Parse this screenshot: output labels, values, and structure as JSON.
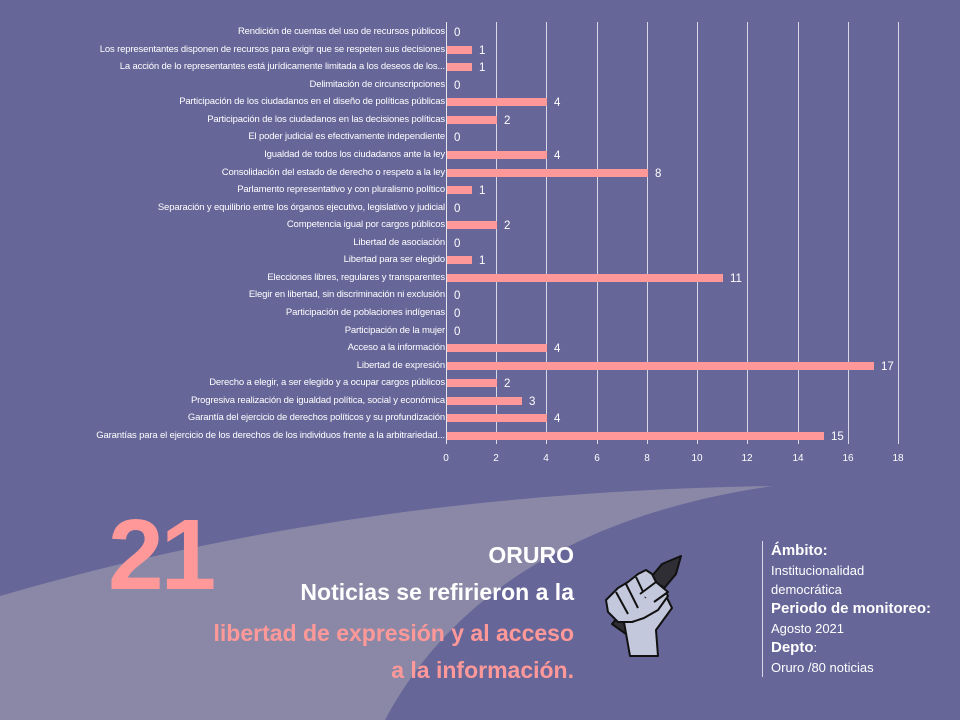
{
  "colors": {
    "background": "#666699",
    "swoosh": "#8a88a6",
    "bar": "#ff9999",
    "accent_text": "#ff9999",
    "text": "#ffffff"
  },
  "chart_data": {
    "type": "bar",
    "orientation": "horizontal",
    "title": "",
    "xlabel": "",
    "ylabel": "",
    "xlim": [
      0,
      18
    ],
    "x_ticks": [
      0,
      2,
      4,
      6,
      8,
      10,
      12,
      14,
      16,
      18
    ],
    "grid": "vertical",
    "legend": null,
    "categories": [
      "Rendición de cuentas del uso de recursos públicos",
      "Los representantes disponen de recursos para exigir que se respeten sus decisiones",
      "La acción de lo representantes está jurídicamente limitada a los deseos de los...",
      "Delimitación de circunscripciones",
      "Participación de los ciudadanos en el diseño de políticas públicas",
      "Participación de los ciudadanos en las decisiones políticas",
      "El poder judicial es efectivamente independiente",
      "Igualdad de todos los ciudadanos ante la ley",
      "Consolidación del estado de derecho o respeto a la ley",
      "Parlamento representativo y con pluralismo político",
      "Separación y equilibrio entre los órganos ejecutivo, legislativo y judicial",
      "Competencia igual por cargos públicos",
      "Libertad de asociación",
      "Libertad para ser elegido",
      "Elecciones libres, regulares y transparentes",
      "Elegir en libertad, sin discriminación ni exclusión",
      "Participación de poblaciones indígenas",
      "Participación de la mujer",
      "Acceso a la información",
      "Libertad de expresión",
      "Derecho a elegir, a ser elegido y a ocupar cargos públicos",
      "Progresiva realización de igualdad política, social y económica",
      "Garantía del ejercicio de derechos políticos y su profundización",
      "Garantías para el ejercicio de los derechos de los individuos frente a la arbitrariedad..."
    ],
    "values": [
      0,
      1,
      1,
      0,
      4,
      2,
      0,
      4,
      8,
      1,
      0,
      2,
      0,
      1,
      11,
      0,
      0,
      0,
      4,
      17,
      2,
      3,
      4,
      15
    ]
  },
  "headline": {
    "big_number": "21",
    "region": "ORURO",
    "line1": "Noticias se refirieron a la",
    "line2": "libertad de expresión y al acceso",
    "line3": "a la información."
  },
  "icon": {
    "name": "fist-holding-pen-icon"
  },
  "info": {
    "ambito_label": "Ámbito:",
    "ambito_line1": "Institucionalidad",
    "ambito_line2": "democrática",
    "periodo_label": "Periodo de monitoreo:",
    "periodo_value": "Agosto 2021",
    "depto_label": "Depto",
    "depto_colon": ":",
    "depto_value": "Oruro /80 noticias"
  }
}
